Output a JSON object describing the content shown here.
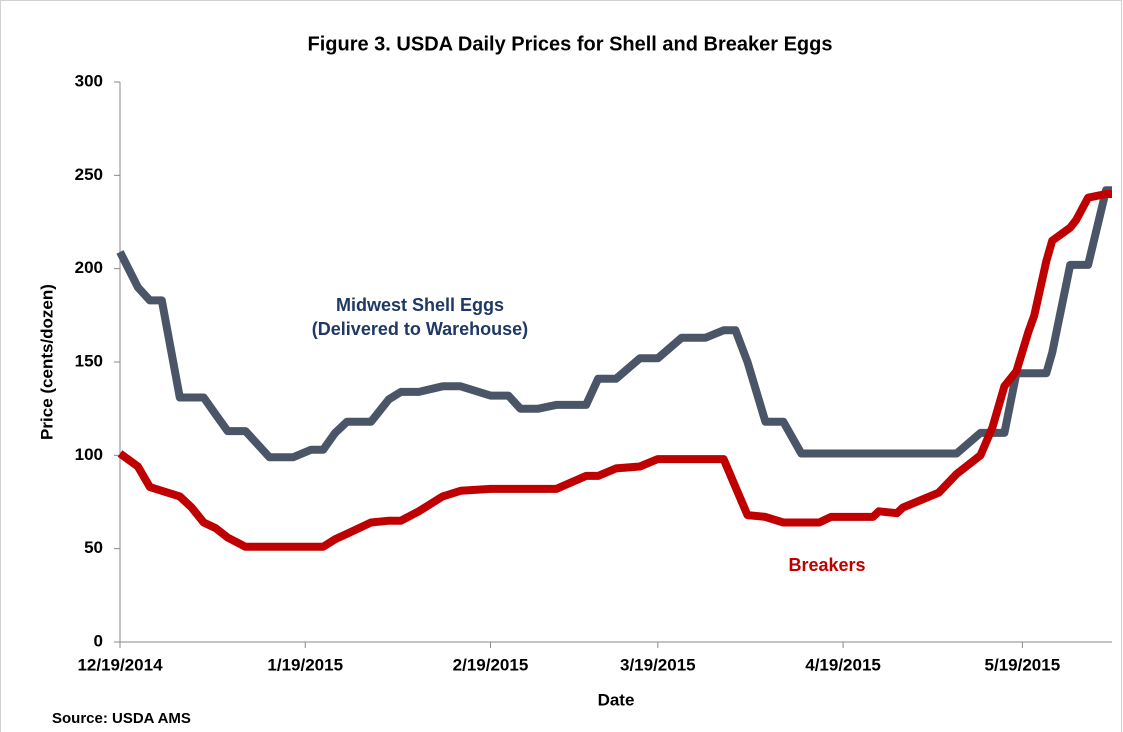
{
  "chart_data": {
    "type": "line",
    "title": "Figure 3. USDA Daily Prices for Shell and Breaker Eggs",
    "x_label": "Date",
    "y_label": "Price (cents/dozen)",
    "source": "Source: USDA AMS",
    "x": [
      "2014-12-19",
      "2014-12-22",
      "2014-12-24",
      "2014-12-26",
      "2014-12-29",
      "2014-12-31",
      "2015-01-02",
      "2015-01-04",
      "2015-01-06",
      "2015-01-09",
      "2015-01-13",
      "2015-01-17",
      "2015-01-20",
      "2015-01-22",
      "2015-01-24",
      "2015-01-26",
      "2015-01-30",
      "2015-02-02",
      "2015-02-04",
      "2015-02-07",
      "2015-02-11",
      "2015-02-14",
      "2015-02-19",
      "2015-02-22",
      "2015-02-24",
      "2015-02-27",
      "2015-03-02",
      "2015-03-07",
      "2015-03-09",
      "2015-03-12",
      "2015-03-16",
      "2015-03-19",
      "2015-03-23",
      "2015-03-27",
      "2015-03-30",
      "2015-04-01",
      "2015-04-03",
      "2015-04-06",
      "2015-04-09",
      "2015-04-12",
      "2015-04-15",
      "2015-04-17",
      "2015-04-24",
      "2015-04-25",
      "2015-04-28",
      "2015-04-29",
      "2015-05-05",
      "2015-05-08",
      "2015-05-12",
      "2015-05-14",
      "2015-05-16",
      "2015-05-18",
      "2015-05-20",
      "2015-05-21",
      "2015-05-23",
      "2015-05-24",
      "2015-05-27",
      "2015-05-28",
      "2015-05-30",
      "2015-06-02",
      "2015-06-03"
    ],
    "series": [
      {
        "name": "Midwest Shell Eggs",
        "note": "(Delivered to Warehouse)",
        "color": "#4a5667",
        "values": [
          209,
          190,
          183,
          183,
          131,
          131,
          131,
          122,
          113,
          113,
          99,
          99,
          103,
          103,
          112,
          118,
          118,
          130,
          134,
          134,
          137,
          137,
          132,
          132,
          125,
          125,
          127,
          127,
          141,
          141,
          152,
          152,
          163,
          163,
          167,
          167,
          150,
          118,
          118,
          101,
          101,
          101,
          101,
          101,
          101,
          101,
          101,
          101,
          112,
          112,
          112,
          144,
          144,
          144,
          144,
          155,
          202,
          202,
          202,
          242,
          242
        ]
      },
      {
        "name": "Breakers",
        "color": "#c00000",
        "values": [
          101,
          94,
          83,
          81,
          78,
          72,
          64,
          61,
          56,
          51,
          51,
          51,
          51,
          51,
          55,
          58,
          64,
          65,
          65,
          70,
          78,
          81,
          82,
          82,
          82,
          82,
          82,
          89,
          89,
          93,
          94,
          98,
          98,
          98,
          98,
          83,
          68,
          67,
          64,
          64,
          64,
          67,
          67,
          70,
          69,
          72,
          80,
          90,
          100,
          115,
          137,
          145,
          166,
          175,
          204,
          215,
          222,
          226,
          238,
          240,
          240
        ]
      }
    ],
    "xlim": [
      "2014-12-19",
      "2015-06-03"
    ],
    "xticks": [
      {
        "value": "2014-12-19",
        "label": "12/19/2014"
      },
      {
        "value": "2015-01-19",
        "label": "1/19/2015"
      },
      {
        "value": "2015-02-19",
        "label": "2/19/2015"
      },
      {
        "value": "2015-03-19",
        "label": "3/19/2015"
      },
      {
        "value": "2015-04-19",
        "label": "4/19/2015"
      },
      {
        "value": "2015-05-19",
        "label": "5/19/2015"
      }
    ],
    "ylim": [
      0,
      300
    ],
    "yticks": [
      0,
      50,
      100,
      150,
      200,
      250,
      300
    ],
    "grid": false
  }
}
